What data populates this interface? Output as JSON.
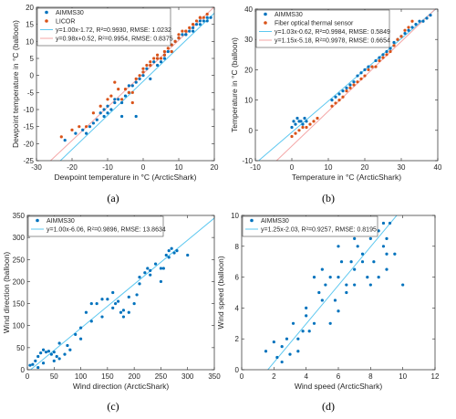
{
  "colors": {
    "blue": "#0072BD",
    "orange": "#D95319",
    "fit_blue": "#5ec8f0",
    "fit_orange": "#f4a6a6",
    "axis": "#262626"
  },
  "chart_data": [
    {
      "id": "a",
      "caption": "(a)",
      "type": "scatter",
      "xlabel": "Dewpoint temperature in °C (ArcticShark)",
      "ylabel": "Dewpoint temperature in °C (balloon)",
      "xlim": [
        -30,
        20
      ],
      "ylim": [
        -25,
        20
      ],
      "xticks": [
        -30,
        -20,
        -10,
        0,
        10,
        20
      ],
      "yticks": [
        -25,
        -20,
        -15,
        -10,
        -5,
        0,
        5,
        10,
        15,
        20
      ],
      "grid": false,
      "legend_position": "top-left",
      "series": [
        {
          "name": "AIMMS30",
          "color": "#0072BD",
          "x": [
            -22,
            -19,
            -17,
            -16,
            -15,
            -14,
            -13,
            -12,
            -11,
            -11,
            -10,
            -10,
            -9,
            -8,
            -7,
            -6,
            -5,
            -4,
            -3,
            -2,
            -1,
            0,
            1,
            2,
            3,
            4,
            5,
            6,
            7,
            8,
            9,
            10,
            11,
            12,
            13,
            14,
            15,
            16,
            17,
            18,
            19,
            -8,
            -6,
            -4,
            -2,
            0,
            2,
            4,
            6,
            8,
            10,
            12,
            14,
            16,
            18
          ],
          "y": [
            -19,
            -17,
            -16,
            -17,
            -15,
            -14,
            -13,
            -11,
            -12,
            -10,
            -11,
            -9,
            -10,
            -8,
            -7,
            -8,
            -6,
            -5,
            -3,
            -2,
            -1,
            1,
            2,
            3,
            4,
            5,
            4,
            6,
            7,
            9,
            10,
            11,
            12,
            12,
            13,
            14,
            15,
            16,
            16,
            17,
            17,
            -7,
            -12,
            -3,
            -12,
            0,
            -1,
            3,
            5,
            7,
            11,
            12,
            13,
            15,
            16
          ],
          "fit_label": "y=1.00x-1.72, R²=0.9930, RMSE: 1.0232",
          "fit": [
            1.0,
            -1.72
          ]
        },
        {
          "name": "LICOR",
          "color": "#D95319",
          "x": [
            -23,
            -20,
            -18,
            -16,
            -14,
            -12,
            -10,
            -9,
            -8,
            -6,
            -4,
            -3,
            -2,
            -1,
            0,
            1,
            2,
            3,
            4,
            5,
            6,
            7,
            8,
            9,
            10,
            11,
            12,
            13,
            14,
            15,
            16,
            17,
            18,
            -7,
            -5,
            -3,
            0,
            2,
            4,
            6,
            8,
            10,
            12,
            14,
            16
          ],
          "y": [
            -18,
            -16,
            -15,
            -15,
            -11,
            -9,
            -7,
            -6,
            -2,
            -7,
            -5,
            -8,
            -1,
            0,
            2,
            3,
            4,
            5,
            6,
            5,
            7,
            8,
            9,
            10,
            12,
            13,
            13,
            14,
            15,
            16,
            17,
            17,
            18,
            -4,
            -4,
            -5,
            1,
            3,
            5,
            6,
            7,
            11,
            13,
            15,
            17
          ],
          "fit_label": "y=0.98x+0.52, R²=0.9954, RMSE: 0.8375",
          "fit": [
            0.98,
            0.52
          ]
        }
      ]
    },
    {
      "id": "b",
      "caption": "(b)",
      "type": "scatter",
      "xlabel": "Temperature in °C (ArcticShark)",
      "ylabel": "Temperature in °C (balloon)",
      "xlim": [
        -10,
        40
      ],
      "ylim": [
        -10,
        40
      ],
      "xticks": [
        -10,
        0,
        10,
        20,
        30,
        40
      ],
      "yticks": [
        -10,
        0,
        10,
        20,
        30,
        40
      ],
      "grid": false,
      "legend_position": "top-left",
      "series": [
        {
          "name": "AIMMS30",
          "color": "#0072BD",
          "x": [
            0,
            0.5,
            1,
            1.5,
            2,
            2.5,
            3,
            3.5,
            4,
            11,
            12,
            13,
            14,
            15,
            16,
            17,
            18,
            19,
            20,
            21,
            22,
            23,
            24,
            25,
            26,
            27,
            28,
            29,
            30,
            31,
            32,
            33,
            34,
            35,
            36,
            37,
            38
          ],
          "y": [
            1,
            3,
            2,
            4,
            3,
            3,
            2,
            4,
            3,
            10,
            11,
            12,
            13,
            14,
            15,
            16,
            18,
            19,
            20,
            21,
            21,
            23,
            24,
            25,
            26,
            27,
            29,
            30,
            31,
            32,
            33,
            34,
            35,
            36,
            36,
            37,
            38
          ],
          "fit_label": "y=1.03x-0.62, R²=0.9984, RMSE: 0.5849",
          "fit": [
            1.03,
            -0.62
          ]
        },
        {
          "name": "Fiber optical thermal sensor",
          "color": "#D95319",
          "x": [
            0,
            1,
            2,
            3,
            4,
            5,
            6,
            7,
            11,
            12,
            13,
            14,
            15,
            16,
            17,
            18,
            19,
            20,
            21,
            22,
            23,
            24,
            25,
            26,
            27,
            28,
            29,
            30,
            31,
            32,
            33
          ],
          "y": [
            -2,
            -1,
            0,
            1,
            1,
            2,
            3,
            4,
            8,
            9,
            10,
            11,
            13,
            14,
            15,
            16,
            17,
            18,
            20,
            21,
            21,
            23,
            24,
            25,
            26,
            28,
            30,
            31,
            33,
            34,
            36
          ],
          "fit_label": "y=1.15x-5.18, R²=0.9978, RMSE: 0.6654",
          "fit": [
            1.15,
            -5.18
          ]
        }
      ]
    },
    {
      "id": "c",
      "caption": "(c)",
      "type": "scatter",
      "xlabel": "Wind direction (ArcticShark)",
      "ylabel": "Wind direction (balloon)",
      "xlim": [
        0,
        350
      ],
      "ylim": [
        0,
        350
      ],
      "xticks": [
        0,
        50,
        100,
        150,
        200,
        250,
        300,
        350
      ],
      "yticks": [
        0,
        50,
        100,
        150,
        200,
        250,
        300,
        350
      ],
      "grid": false,
      "legend_position": "top-left",
      "series": [
        {
          "name": "AIMMS30",
          "color": "#0072BD",
          "x": [
            5,
            10,
            15,
            20,
            25,
            30,
            35,
            40,
            45,
            50,
            55,
            60,
            70,
            80,
            90,
            100,
            110,
            120,
            130,
            140,
            150,
            160,
            170,
            175,
            180,
            190,
            200,
            205,
            210,
            220,
            225,
            230,
            240,
            250,
            255,
            260,
            265,
            270,
            275,
            280,
            300,
            20,
            60,
            100,
            140,
            160,
            180,
            190,
            210,
            230,
            250,
            265,
            30,
            50,
            75,
            120,
            165
          ],
          "y": [
            10,
            12,
            20,
            30,
            38,
            45,
            40,
            42,
            35,
            40,
            30,
            25,
            35,
            45,
            80,
            95,
            130,
            150,
            150,
            160,
            160,
            175,
            155,
            130,
            120,
            130,
            150,
            170,
            210,
            220,
            230,
            225,
            240,
            200,
            230,
            260,
            270,
            275,
            265,
            270,
            260,
            5,
            60,
            70,
            120,
            140,
            135,
            165,
            195,
            215,
            230,
            255,
            15,
            20,
            55,
            110,
            150
          ],
          "fit_label": "y=1.00x-6.06, R²=0.9896, RMSE: 13.8634",
          "fit": [
            1.0,
            -6.06
          ]
        }
      ]
    },
    {
      "id": "d",
      "caption": "(d)",
      "type": "scatter",
      "xlabel": "Wind speed (ArcticShark)",
      "ylabel": "Wind speed (balloon)",
      "xlim": [
        0,
        12
      ],
      "ylim": [
        0,
        10
      ],
      "xticks": [
        0,
        2,
        4,
        6,
        8,
        10,
        12
      ],
      "yticks": [
        0,
        2,
        4,
        6,
        8,
        10
      ],
      "grid": false,
      "legend_position": "top-left",
      "series": [
        {
          "name": "AIMMS30",
          "color": "#0072BD",
          "x": [
            1.5,
            2,
            2.2,
            2.5,
            2.8,
            3,
            3.2,
            3.5,
            3.8,
            4,
            4.2,
            4.5,
            4.8,
            5,
            5.2,
            5.5,
            5.8,
            6,
            6.2,
            6.5,
            6.8,
            7,
            7.2,
            7.5,
            7.8,
            8,
            8.2,
            8.5,
            8.8,
            9,
            9.2,
            9.5,
            10,
            4,
            5,
            6,
            7,
            8,
            9,
            5.5,
            6.5,
            7.5,
            8.5,
            2.5,
            3.5,
            6,
            7,
            8,
            9,
            4.5,
            7.8,
            8.8
          ],
          "y": [
            1.2,
            1.8,
            0.8,
            1.5,
            2,
            1,
            3,
            1.2,
            2.5,
            3.5,
            2.5,
            3,
            5,
            4.5,
            5.5,
            6,
            4.5,
            6,
            7,
            5.5,
            7,
            6.5,
            8,
            7.5,
            6,
            8.5,
            7,
            9,
            8,
            6.5,
            9.5,
            7.5,
            5.5,
            4,
            6.5,
            8,
            5.5,
            9,
            8.5,
            3,
            5,
            7,
            6,
            0.5,
            2,
            3.8,
            8.5,
            5.5,
            7.5,
            6,
            9.8,
            9.5
          ],
          "fit_label": "y=1.25x-2.03, R²=0.9257, RMSE: 0.8195",
          "fit": [
            1.25,
            -2.03
          ]
        }
      ]
    }
  ]
}
